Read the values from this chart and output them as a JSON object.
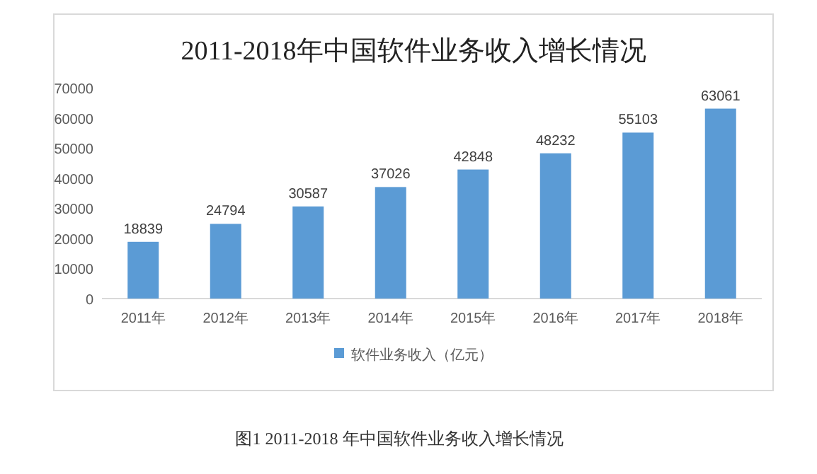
{
  "chart_data": {
    "type": "bar",
    "title": "2011-2018年中国软件业务收入增长情况",
    "categories": [
      "2011年",
      "2012年",
      "2013年",
      "2014年",
      "2015年",
      "2016年",
      "2017年",
      "2018年"
    ],
    "series": [
      {
        "name": "软件业务收入（亿元）",
        "color": "#5b9bd5",
        "values": [
          18839,
          24794,
          30587,
          37026,
          42848,
          48232,
          55103,
          63061
        ]
      }
    ],
    "ylim": [
      0,
      70000
    ],
    "yticks": [
      0,
      10000,
      20000,
      30000,
      40000,
      50000,
      60000,
      70000
    ],
    "data_labels": true,
    "legend": "bottom",
    "grid": false,
    "annotations": [
      "图1 2011-2018 年中国软件业务收入增长情况"
    ]
  }
}
